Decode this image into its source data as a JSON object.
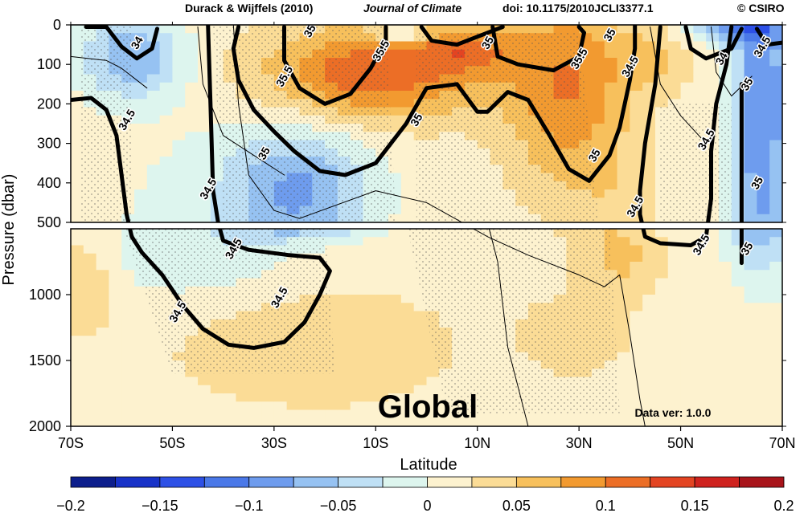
{
  "header": {
    "authors": "Durack & Wijffels (2010)",
    "journal": "Journal of Climate",
    "doi": "doi: 10.1175/2010JCLI3377.1",
    "copyright": "© CSIRO"
  },
  "chart_data": {
    "type": "heatmap",
    "title": "Global",
    "annotation": "Data ver: 1.0.0",
    "xlabel": "Latitude",
    "ylabel": "Pressure (dbar)",
    "xlim": [
      -70,
      70
    ],
    "x_ticks": [
      -70,
      -50,
      -30,
      -10,
      10,
      30,
      50,
      70
    ],
    "x_tick_labels": [
      "70S",
      "50S",
      "30S",
      "10S",
      "10N",
      "30N",
      "50N",
      "70N"
    ],
    "upper_panel": {
      "ylim": [
        0,
        500
      ],
      "y_ticks": [
        0,
        100,
        200,
        300,
        400
      ],
      "y_tick_labels": [
        "0",
        "100",
        "200",
        "300",
        "400"
      ]
    },
    "lower_panel": {
      "ylim": [
        500,
        2000
      ],
      "y_ticks": [
        500,
        1000,
        1500,
        2000
      ],
      "y_tick_labels": [
        "500",
        "1000",
        "1500",
        "2000"
      ]
    },
    "colorbar": {
      "range": [
        -0.2,
        0.2
      ],
      "interval": 0.025,
      "tick_values": [
        -0.2,
        -0.15,
        -0.1,
        -0.05,
        0,
        0.05,
        0.1,
        0.15,
        0.2
      ],
      "tick_labels": [
        "−0.2",
        "−0.15",
        "−0.1",
        "−0.05",
        "0",
        "0.05",
        "0.1",
        "0.15",
        "0.2"
      ],
      "colors": [
        "#0c1e8c",
        "#1732c8",
        "#2d50e6",
        "#4a78e8",
        "#6e9cee",
        "#96c2f2",
        "#bfe0f5",
        "#ddf5ee",
        "#fdf2cf",
        "#fbdc96",
        "#f7c05c",
        "#f29a30",
        "#ec6e26",
        "#e34422",
        "#cf221e",
        "#a8141a"
      ]
    },
    "salinity_contours": {
      "thick_labels": [
        "34",
        "34.5",
        "35",
        "35.5"
      ],
      "labels": [
        {
          "text": "34",
          "lat": -57,
          "p": 45
        },
        {
          "text": "34.5",
          "lat": -59,
          "p": 240
        },
        {
          "text": "34.5",
          "lat": -43,
          "p": 415
        },
        {
          "text": "34.5",
          "lat": -38,
          "p": 650
        },
        {
          "text": "34.5",
          "lat": -49,
          "p": 1130
        },
        {
          "text": "34.5",
          "lat": -29,
          "p": 1020
        },
        {
          "text": "35",
          "lat": -32,
          "p": 325
        },
        {
          "text": "35.5",
          "lat": -28,
          "p": 130
        },
        {
          "text": "35",
          "lat": -23,
          "p": 15
        },
        {
          "text": "35.5",
          "lat": -9,
          "p": 65
        },
        {
          "text": "35",
          "lat": -2,
          "p": 240
        },
        {
          "text": "35",
          "lat": 12,
          "p": 45
        },
        {
          "text": "35",
          "lat": 33,
          "p": 330
        },
        {
          "text": "35.5",
          "lat": 30,
          "p": 85
        },
        {
          "text": "35",
          "lat": 36,
          "p": 25
        },
        {
          "text": "34.5",
          "lat": 40,
          "p": 105
        },
        {
          "text": "34.5",
          "lat": 41,
          "p": 460
        },
        {
          "text": "34.5",
          "lat": 54,
          "p": 620
        },
        {
          "text": "34.5",
          "lat": 55,
          "p": 290
        },
        {
          "text": "34",
          "lat": 58,
          "p": 85
        },
        {
          "text": "34.5",
          "lat": 66,
          "p": 55
        },
        {
          "text": "35",
          "lat": 63,
          "p": 150
        },
        {
          "text": "35",
          "lat": 65,
          "p": 400
        },
        {
          "text": "35",
          "lat": 63,
          "p": 650
        }
      ]
    },
    "contour_lines": [
      {
        "style": "thick",
        "points": [
          [
            -70,
            190
          ],
          [
            -66,
            185
          ],
          [
            -63,
            215
          ],
          [
            -61,
            280
          ],
          [
            -60,
            380
          ],
          [
            -59,
            480
          ],
          [
            -58,
            560
          ],
          [
            -56,
            680
          ],
          [
            -52,
            850
          ],
          [
            -48,
            1080
          ],
          [
            -44,
            1260
          ],
          [
            -39,
            1380
          ],
          [
            -34,
            1405
          ],
          [
            -28,
            1360
          ],
          [
            -24,
            1210
          ],
          [
            -21,
            1000
          ],
          [
            -19,
            820
          ],
          [
            -21,
            720
          ],
          [
            -27,
            700
          ],
          [
            -35,
            660
          ],
          [
            -40,
            590
          ],
          [
            -41,
            500
          ],
          [
            -42,
            420
          ],
          [
            -42.5,
            200
          ],
          [
            -43,
            0
          ]
        ]
      },
      {
        "style": "thick",
        "points": [
          [
            -67,
            5
          ],
          [
            -63,
            5
          ],
          [
            -60,
            55
          ],
          [
            -57,
            85
          ],
          [
            -54,
            60
          ],
          [
            -53,
            10
          ]
        ]
      },
      {
        "style": "thick",
        "points": [
          [
            -37,
            5
          ],
          [
            -38,
            60
          ],
          [
            -37,
            140
          ],
          [
            -34,
            215
          ],
          [
            -30,
            270
          ],
          [
            -26,
            320
          ],
          [
            -21,
            370
          ],
          [
            -16,
            380
          ],
          [
            -10,
            350
          ],
          [
            -4,
            250
          ],
          [
            0,
            160
          ],
          [
            6,
            150
          ],
          [
            10,
            220
          ],
          [
            12,
            220
          ],
          [
            16,
            170
          ],
          [
            20,
            190
          ],
          [
            24,
            275
          ],
          [
            28,
            365
          ],
          [
            32,
            395
          ],
          [
            36,
            330
          ],
          [
            38,
            260
          ],
          [
            40,
            140
          ],
          [
            41,
            60
          ],
          [
            41,
            0
          ]
        ]
      },
      {
        "style": "thick",
        "points": [
          [
            -28,
            5
          ],
          [
            -28,
            90
          ],
          [
            -25,
            160
          ],
          [
            -20,
            200
          ],
          [
            -15,
            175
          ],
          [
            -11,
            110
          ],
          [
            -8,
            40
          ],
          [
            -8,
            5
          ]
        ]
      },
      {
        "style": "thick",
        "points": [
          [
            -1,
            5
          ],
          [
            1,
            40
          ],
          [
            6,
            50
          ],
          [
            12,
            20
          ],
          [
            15,
            5
          ]
        ]
      },
      {
        "style": "thick",
        "points": [
          [
            13,
            5
          ],
          [
            14,
            80
          ],
          [
            18,
            100
          ],
          [
            25,
            115
          ],
          [
            30,
            80
          ],
          [
            31,
            20
          ],
          [
            30,
            5
          ]
        ]
      },
      {
        "style": "thick",
        "points": [
          [
            46,
            5
          ],
          [
            45,
            150
          ],
          [
            43,
            300
          ],
          [
            42,
            420
          ],
          [
            42,
            480
          ],
          [
            43,
            560
          ],
          [
            46,
            610
          ],
          [
            52,
            625
          ],
          [
            55,
            560
          ],
          [
            56,
            440
          ],
          [
            56,
            320
          ],
          [
            57,
            200
          ],
          [
            59,
            100
          ],
          [
            60,
            5
          ]
        ]
      },
      {
        "style": "thick",
        "points": [
          [
            51,
            5
          ],
          [
            52,
            60
          ],
          [
            55,
            85
          ],
          [
            60,
            60
          ],
          [
            62,
            10
          ]
        ]
      },
      {
        "style": "thick",
        "points": [
          [
            62,
            150
          ],
          [
            62,
            300
          ],
          [
            62,
            450
          ],
          [
            62,
            600
          ],
          [
            62,
            760
          ]
        ]
      },
      {
        "style": "thick",
        "points": [
          [
            65,
            10
          ],
          [
            67,
            50
          ],
          [
            70,
            45
          ]
        ]
      },
      {
        "style": "thin",
        "points": [
          [
            -70,
            80
          ],
          [
            -63,
            90
          ],
          [
            -60,
            110
          ],
          [
            -55,
            160
          ]
        ]
      },
      {
        "style": "thin",
        "points": [
          [
            -45,
            5
          ],
          [
            -44,
            150
          ],
          [
            -40,
            280
          ],
          [
            -34,
            330
          ],
          [
            -28,
            380
          ]
        ]
      },
      {
        "style": "thin",
        "points": [
          [
            -38,
            0
          ],
          [
            -37,
            200
          ],
          [
            -35,
            380
          ],
          [
            -30,
            470
          ],
          [
            -25,
            490
          ],
          [
            -10,
            420
          ],
          [
            0,
            450
          ],
          [
            12,
            560
          ],
          [
            20,
            700
          ],
          [
            30,
            850
          ],
          [
            35,
            940
          ],
          [
            38,
            850
          ],
          [
            40,
            1300
          ],
          [
            42,
            1800
          ],
          [
            43,
            2000
          ]
        ]
      },
      {
        "style": "thin",
        "points": [
          [
            12,
            500
          ],
          [
            14,
            750
          ],
          [
            16,
            1400
          ],
          [
            18,
            1700
          ],
          [
            20,
            2000
          ]
        ]
      },
      {
        "style": "thin",
        "points": [
          [
            44,
            5
          ],
          [
            46,
            150
          ],
          [
            50,
            230
          ],
          [
            55,
            300
          ]
        ]
      },
      {
        "style": "thin",
        "points": [
          [
            56,
            5
          ],
          [
            57,
            120
          ],
          [
            60,
            180
          ],
          [
            64,
            130
          ]
        ]
      }
    ]
  }
}
